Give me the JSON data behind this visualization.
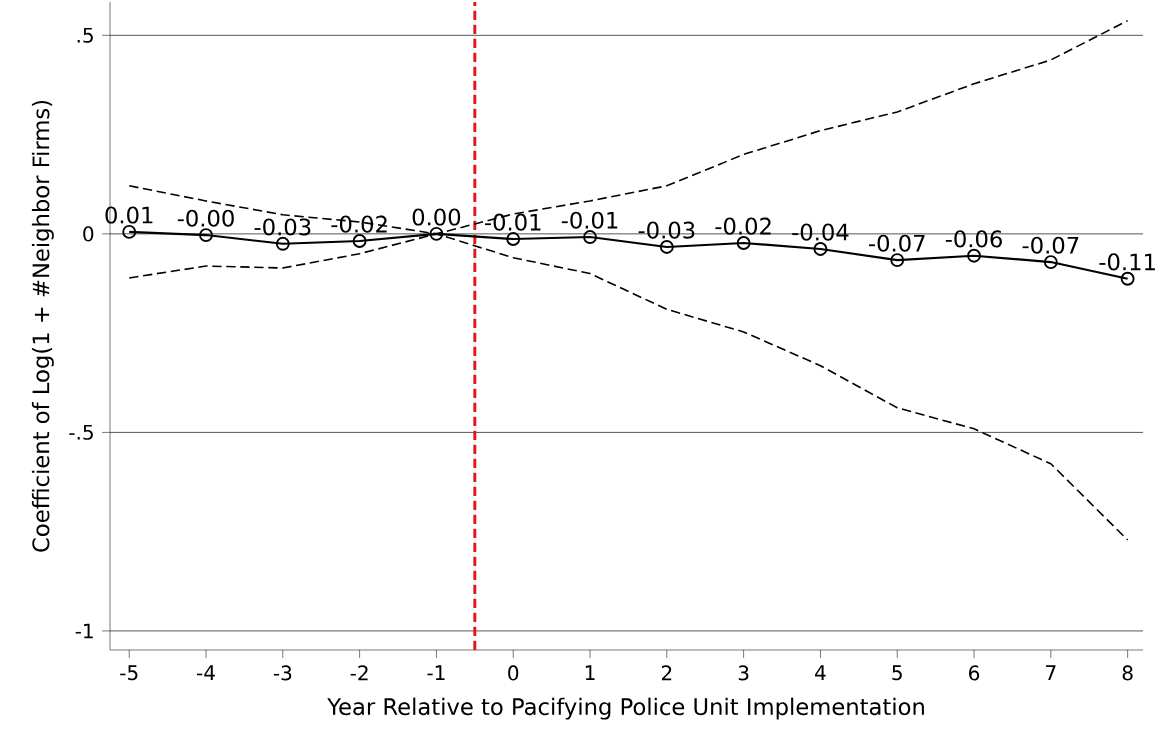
{
  "chart_data": {
    "type": "line",
    "xlabel": "Year Relative to Pacifying Police Unit Implementation",
    "ylabel": "Coefficient of Log(1 + #Neighbor Firms)",
    "x": [
      -5,
      -4,
      -3,
      -2,
      -1,
      0,
      1,
      2,
      3,
      4,
      5,
      6,
      7,
      8
    ],
    "series": [
      {
        "color": "#000000",
        "values": [
          0.005,
          -0.003,
          -0.025,
          -0.018,
          0,
          -0.013,
          -0.008,
          -0.033,
          -0.023,
          -0.038,
          -0.066,
          -0.055,
          -0.071,
          -0.113
        ],
        "value_labels": [
          "0.01",
          "-0.00",
          "-0.03",
          "-0.02",
          "0.00",
          "-0.01",
          "-0.01",
          "-0.03",
          "-0.02",
          "-0.04",
          "-0.07",
          "-0.06",
          "-0.07",
          "-0.11"
        ]
      },
      {
        "color": "#000000",
        "line_style": "dashed",
        "marker": "none",
        "values": [
          0.121,
          0.083,
          0.048,
          0.03,
          0,
          0.05,
          0.083,
          0.121,
          0.2,
          0.26,
          0.307,
          0.378,
          0.438,
          0.537
        ]
      },
      {
        "color": "#000000",
        "line_style": "dashed",
        "marker": "none",
        "values": [
          -0.111,
          -0.081,
          -0.086,
          -0.05,
          0,
          -0.06,
          -0.1,
          -0.19,
          -0.247,
          -0.332,
          -0.438,
          -0.491,
          -0.579,
          -0.771
        ]
      }
    ],
    "xlim": [
      -5.25,
      8.2
    ],
    "ylim": [
      -1.048,
      0.584
    ],
    "xticks": [
      -5,
      -4,
      -3,
      -2,
      -1,
      0,
      1,
      2,
      3,
      4,
      5,
      6,
      7,
      8
    ],
    "yticks": [
      {
        "value": 0.5,
        "label": ".5"
      },
      {
        "value": 0,
        "label": "0"
      },
      {
        "value": -0.5,
        "label": "-.5"
      },
      {
        "value": -1,
        "label": "-1"
      }
    ],
    "ref_lines": [
      {
        "axis": "x",
        "value": -0.5,
        "color": "#e8141a",
        "line_style": "dashed"
      }
    ],
    "grid": "y",
    "marker": "circle",
    "line_style": "solid"
  }
}
